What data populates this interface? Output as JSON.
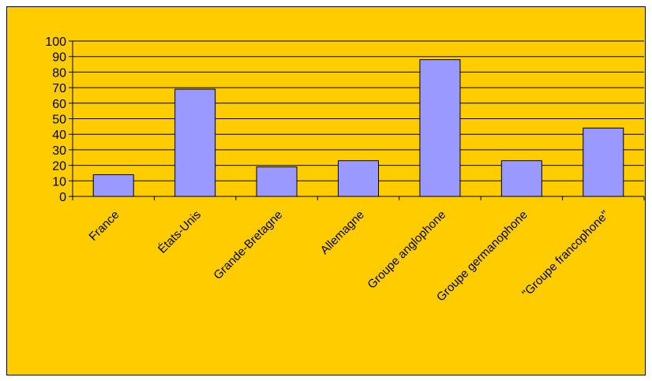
{
  "chart_data": {
    "type": "bar",
    "categories": [
      "France",
      "États-Unis",
      "Grande-Bretagne",
      "Allemagne",
      "Groupe anglophone",
      "Groupe germanophone",
      "\"Groupe francophone\""
    ],
    "values": [
      14,
      69,
      19,
      23,
      88,
      23,
      44
    ],
    "ylim": [
      0,
      100
    ],
    "yticks": [
      0,
      10,
      20,
      30,
      40,
      50,
      60,
      70,
      80,
      90,
      100
    ],
    "grid": true,
    "legend": "none",
    "colors": {
      "background": "#FFCC00",
      "bar_fill": "#9999FF",
      "bar_stroke": "#000000",
      "grid": "#000000"
    }
  }
}
